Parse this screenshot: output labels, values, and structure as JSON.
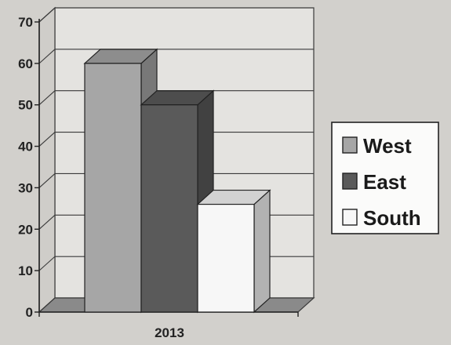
{
  "chart_data": {
    "type": "bar",
    "categories": [
      "2013"
    ],
    "series": [
      {
        "name": "West",
        "values": [
          60
        ],
        "color": "#a6a6a6"
      },
      {
        "name": "East",
        "values": [
          50
        ],
        "color": "#5a5a5a"
      },
      {
        "name": "South",
        "values": [
          26
        ],
        "color": "#f7f7f7"
      }
    ],
    "title": "",
    "xlabel": "",
    "ylabel": "",
    "ylim": [
      0,
      70
    ],
    "yticks": [
      0,
      10,
      20,
      30,
      40,
      50,
      60,
      70
    ],
    "grid": true,
    "three_d": true,
    "legend_position": "right"
  }
}
